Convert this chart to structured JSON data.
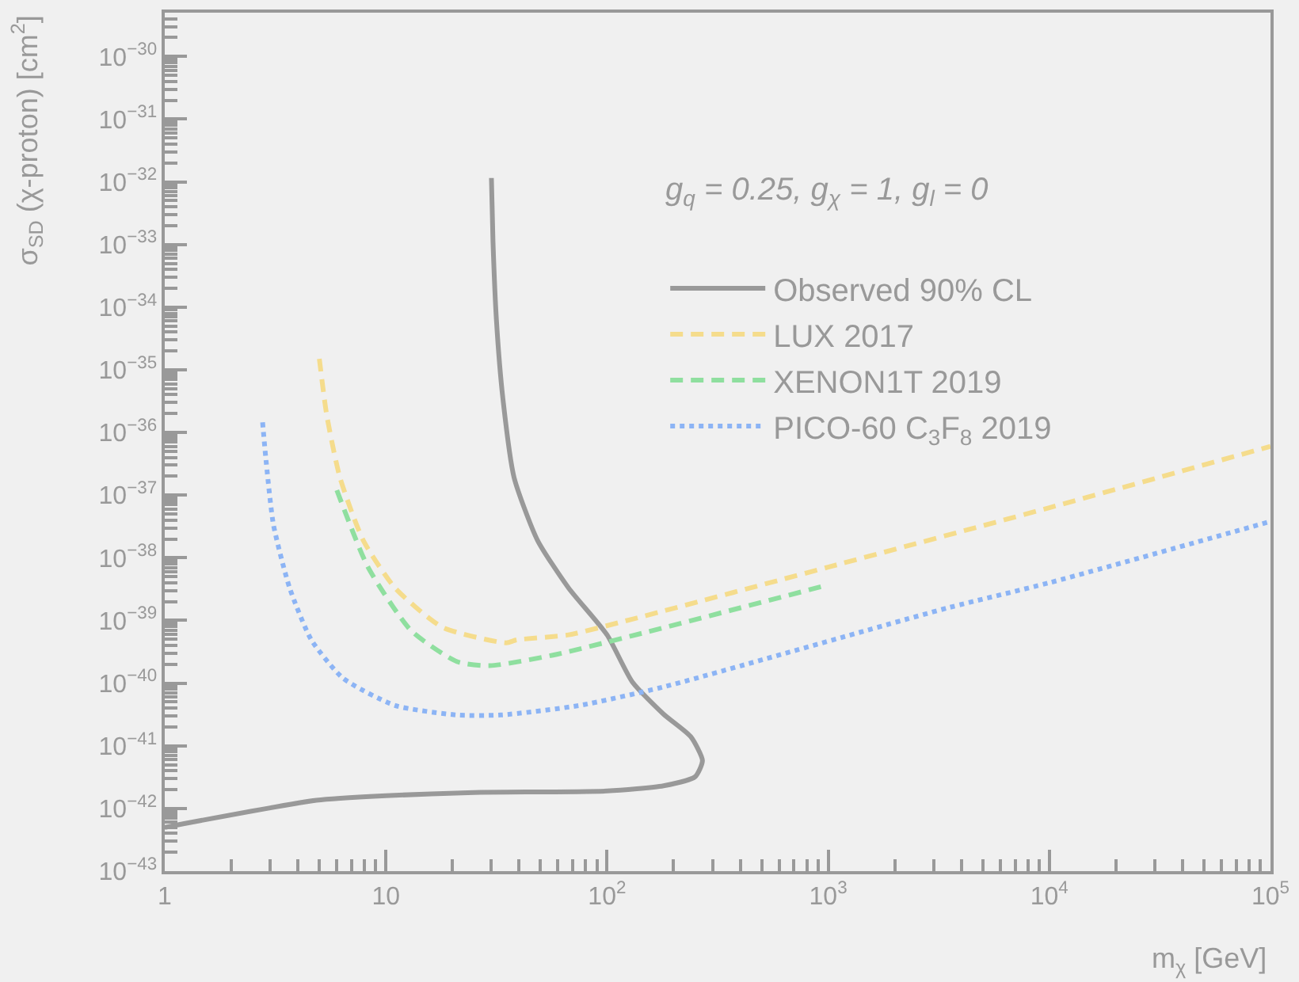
{
  "chart_data": {
    "type": "line",
    "xlabel": "m$_{χ}$ [GeV]",
    "ylabel": "σ$_{SD}$ (χ-proton) [cm$^{2}$]",
    "annotations": [
      "g$_{q}$ = 0.25, g$_{χ}$ = 1, g$_{l}$ = 0"
    ],
    "log": "xy",
    "xlim": [
      1,
      100000
    ],
    "ylim": [
      1e-43,
      5e-30
    ],
    "xticks": [
      1,
      10,
      {
        "value": 100,
        "label": "10$^{2}$"
      },
      {
        "value": 1000,
        "label": "10$^{3}$"
      },
      {
        "value": 10000,
        "label": "10$^{4}$"
      },
      {
        "value": 100000,
        "label": "10$^{5}$"
      }
    ],
    "yticks": [
      {
        "value": 1e-43,
        "label": "10$^{−43}$"
      },
      {
        "value": 1e-42,
        "label": "10$^{−42}$"
      },
      {
        "value": 1e-41,
        "label": "10$^{−41}$"
      },
      {
        "value": 1e-40,
        "label": "10$^{−40}$"
      },
      {
        "value": 1e-39,
        "label": "10$^{−39}$"
      },
      {
        "value": 1e-38,
        "label": "10$^{−38}$"
      },
      {
        "value": 1e-37,
        "label": "10$^{−37}$"
      },
      {
        "value": 1e-36,
        "label": "10$^{−36}$"
      },
      {
        "value": 1e-35,
        "label": "10$^{−35}$"
      },
      {
        "value": 1e-34,
        "label": "10$^{−34}$"
      },
      {
        "value": 1e-33,
        "label": "10$^{−33}$"
      },
      {
        "value": 1e-32,
        "label": "10$^{−32}$"
      },
      {
        "value": 1e-31,
        "label": "10$^{−31}$"
      },
      {
        "value": 1e-30,
        "label": "10$^{−30}$"
      }
    ],
    "grid": false,
    "legend": "top right",
    "marker": "none",
    "series": [
      {
        "name": "Observed 90% CL",
        "color": "#999999",
        "line_style": "solid",
        "x": [
          1,
          4.85,
          10,
          25,
          100,
          180,
          250,
          270,
          239,
          180,
          130,
          100,
          67,
          48.5,
          38,
          33.8,
          31.6,
          30.5,
          30
        ],
        "values": [
          5e-43,
          1.35e-42,
          1.6e-42,
          1.8e-42,
          1.9e-42,
          2.3e-42,
          3.2e-42,
          5.8e-42,
          1.4e-41,
          3.2e-41,
          1.05e-40,
          5.9e-40,
          3.3e-39,
          1.9e-38,
          1.9e-37,
          3.5e-36,
          6.3e-35,
          1.1e-33,
          1.15e-32
        ]
      },
      {
        "name": "LUX 2017",
        "color": "#f5dc8c",
        "line_style": "dashed",
        "x": [
          5,
          5.4,
          6.2,
          7.9,
          11,
          18,
          35,
          39,
          67,
          130,
          1000,
          10000,
          100000
        ],
        "values": [
          1.5e-35,
          1.9e-36,
          1.9e-37,
          1.9e-38,
          3.3e-39,
          7.8e-40,
          4.4e-40,
          4.9e-40,
          5.9e-40,
          1.05e-39,
          7.1e-39,
          6.3e-38,
          6e-37
        ]
      },
      {
        "name": "XENON1T 2019",
        "color": "#8fdf9f",
        "line_style": "dashed",
        "x": [
          6,
          8.3,
          13,
          21,
          29.5,
          57,
          153,
          1000
        ],
        "values": [
          1.2e-37,
          7.1e-39,
          6.9e-40,
          2.2e-40,
          1.9e-40,
          2.8e-40,
          6.6e-40,
          3.7e-39
        ]
      },
      {
        "name": "PICO-60 C$_{3}$F$_{8}$ 2019",
        "color": "#8cb4f5",
        "line_style": "dotted",
        "x": [
          2.77,
          2.86,
          3.1,
          3.67,
          4.6,
          6.4,
          11,
          21,
          33,
          75,
          180,
          3500,
          10000,
          100000
        ],
        "values": [
          1.45e-36,
          4.1e-37,
          3.4e-38,
          3.3e-39,
          4.9e-40,
          1.2e-40,
          4.4e-41,
          3.1e-41,
          3.1e-41,
          4.4e-41,
          8.7e-41,
          1.6e-39,
          4e-39,
          3.8e-38
        ]
      }
    ]
  }
}
